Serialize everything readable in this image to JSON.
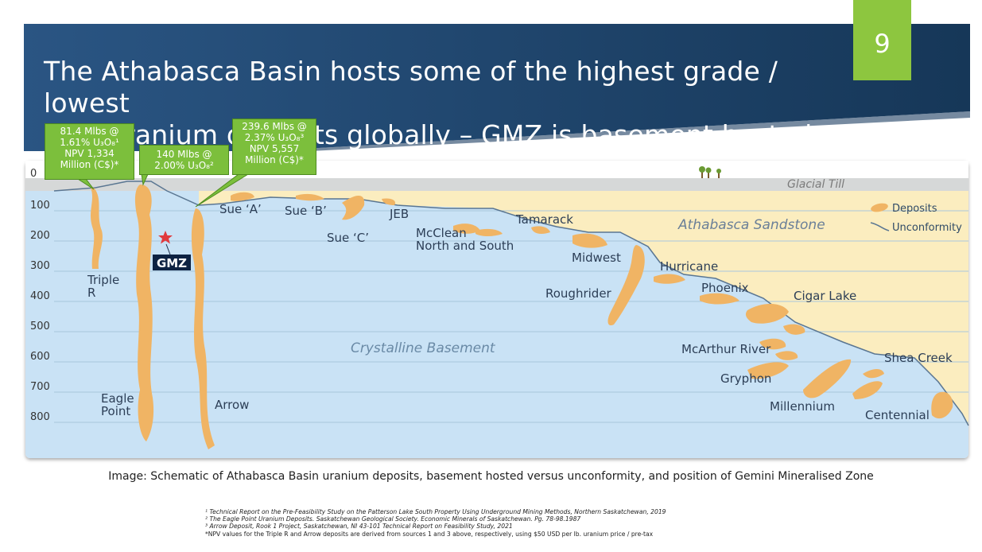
{
  "slide": {
    "page_number": "9",
    "title_line1": "The Athabasca Basin hosts some of the highest grade / lowest",
    "title_line2": "cost uranium deposits globally – GMZ is basement hosted"
  },
  "callouts": {
    "triple_r": [
      "81.4 Mlbs @",
      "1.61% U₃O₈¹",
      "NPV 1,334",
      "Million (C$)*"
    ],
    "eagle_point": [
      "140 Mlbs @",
      "2.00% U₃O₈²"
    ],
    "arrow": [
      "239.6 Mlbs @",
      "2.37% U₃O₈³",
      "NPV 5,557",
      "Million (C$)*"
    ]
  },
  "depth_axis": [
    "0",
    "100",
    "200",
    "300",
    "400",
    "500",
    "600",
    "700",
    "800"
  ],
  "layers": {
    "glacial_till": "Glacial Till",
    "sandstone": "Athabasca Sandstone",
    "basement": "Crystalline Basement"
  },
  "legend": {
    "deposits": "Deposits",
    "unconformity": "Unconformity"
  },
  "deposit_labels": {
    "triple_r": [
      "Triple",
      "R"
    ],
    "eagle_point": [
      "Eagle",
      "Point"
    ],
    "arrow": "Arrow",
    "gmz": "GMZ",
    "sue_a": "Sue ‘A’",
    "sue_b": "Sue ‘B’",
    "sue_c": "Sue ‘C’",
    "jeb": "JEB",
    "mcclean": [
      "McClean",
      "North and South"
    ],
    "tamarack": "Tamarack",
    "midwest": "Midwest",
    "roughrider": "Roughrider",
    "hurricane": "Hurricane",
    "phoenix": "Phoenix",
    "cigar_lake": "Cigar Lake",
    "mcarthur_river": "McArthur River",
    "gryphon": "Gryphon",
    "millennium": "Millennium",
    "shea_creek": "Shea Creek",
    "centennial": "Centennial"
  },
  "caption": "Image: Schematic of Athabasca Basin uranium deposits, basement hosted versus unconformity, and position of Gemini Mineralised Zone",
  "references": [
    "¹ Technical Report on the Pre-Feasibility Study on the Patterson Lake South Property Using Underground Mining Methods, Northern Saskatchewan, 2019",
    "² The Eagle Point Uranium Deposits. Saskatchewan Geological Society. Economic Minerals of Saskatchewan. Pg. 78-98.1987",
    "³ Arrow Deposit, Rook 1 Project, Saskatchewan, NI 43-101 Technical Report on Feasibility Study, 2021",
    "*NPV values for the Triple R and Arrow deposits are derived from sources 1 and 3 above, respectively, using $50 USD per lb. uranium price / pre-tax"
  ],
  "colors": {
    "banner": "#21466e",
    "accent_green": "#8dc63f",
    "basement": "#c9e2f5",
    "sandstone": "#fbedbf",
    "till": "#d6d8d8",
    "deposit": "#f0b464",
    "unconformity": "#5a7692"
  }
}
